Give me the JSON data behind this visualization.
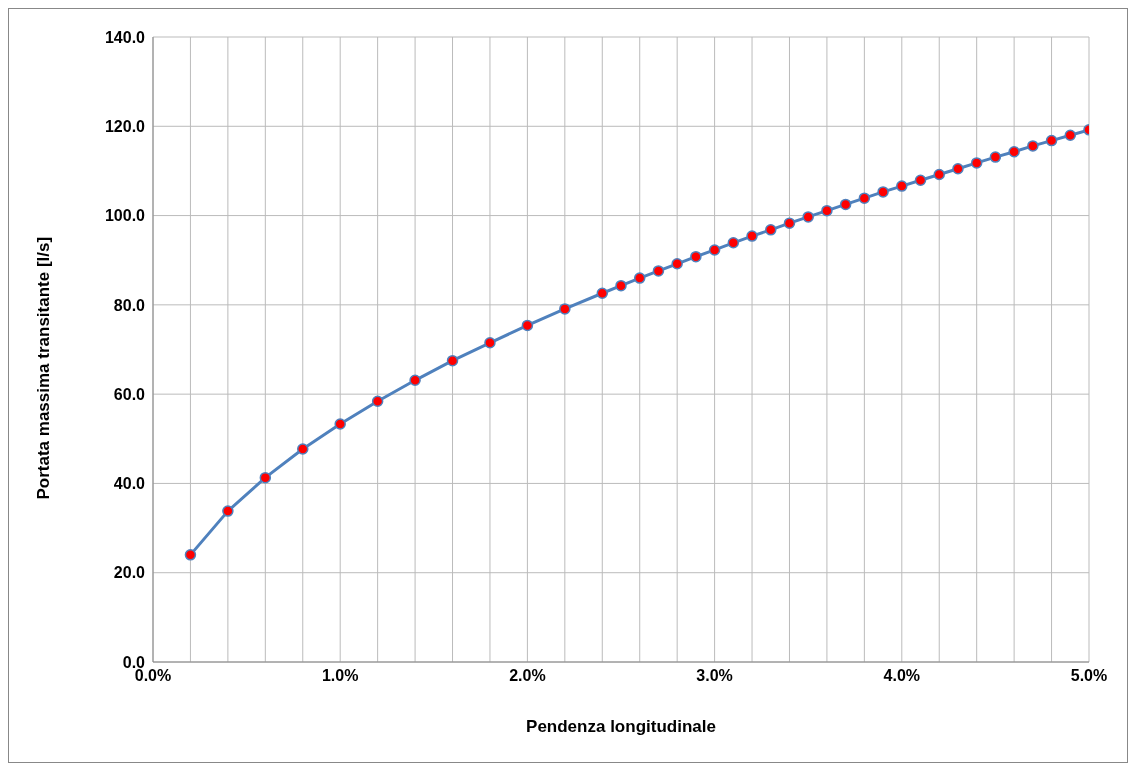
{
  "chart_data": {
    "type": "line",
    "xlabel": "Pendenza longitudinale",
    "ylabel": "Portata massima transitante [l/s]",
    "x": [
      0.2,
      0.4,
      0.6,
      0.8,
      1.0,
      1.2,
      1.4,
      1.6,
      1.8,
      2.0,
      2.2,
      2.4,
      2.5,
      2.6,
      2.7,
      2.8,
      2.9,
      3.0,
      3.1,
      3.2,
      3.3,
      3.4,
      3.5,
      3.6,
      3.7,
      3.8,
      3.9,
      4.0,
      4.1,
      4.2,
      4.3,
      4.4,
      4.5,
      4.6,
      4.7,
      4.8,
      4.9,
      5.0
    ],
    "series": [
      {
        "color": "#4f81bd",
        "colors": [
          "#ff0000",
          "#ff0000",
          "#ff0000",
          "#ff0000",
          "#ff0000",
          "#ff0000",
          "#ff0000",
          "#ff0000",
          "#ff0000",
          "#ff0000",
          "#ff0000",
          "#ff0000",
          "#ff0000",
          "#ff0000",
          "#ff0000",
          "#ff0000",
          "#ff0000",
          "#ff0000",
          "#ff0000",
          "#ff0000",
          "#ff0000",
          "#ff0000",
          "#ff0000",
          "#ff0000",
          "#ff0000",
          "#ff0000",
          "#ff0000",
          "#ff0000",
          "#ff0000",
          "#ff0000",
          "#ff0000",
          "#ff0000",
          "#ff0000",
          "#ff0000",
          "#ff0000",
          "#ff0000",
          "#ff0000",
          "#ff0000"
        ],
        "values": [
          24.0,
          33.8,
          41.3,
          47.7,
          53.3,
          58.4,
          63.1,
          67.5,
          71.5,
          75.4,
          79.1,
          82.6,
          84.3,
          86.0,
          87.6,
          89.2,
          90.8,
          92.3,
          93.9,
          95.4,
          96.8,
          98.3,
          99.7,
          101.1,
          102.5,
          103.9,
          105.3,
          106.6,
          107.9,
          109.2,
          110.5,
          111.8,
          113.1,
          114.3,
          115.6,
          116.8,
          118.0,
          119.2
        ]
      }
    ],
    "xlim": [
      0,
      5
    ],
    "xticks": [
      {
        "value": 0,
        "label": "0.0%"
      },
      {
        "value": 0.2,
        "label": null
      },
      {
        "value": 0.4,
        "label": null
      },
      {
        "value": 0.6,
        "label": null
      },
      {
        "value": 0.8,
        "label": null
      },
      {
        "value": 1,
        "label": "1.0%"
      },
      {
        "value": 1.2,
        "label": null
      },
      {
        "value": 1.4,
        "label": null
      },
      {
        "value": 1.6,
        "label": null
      },
      {
        "value": 1.8,
        "label": null
      },
      {
        "value": 2,
        "label": "2.0%"
      },
      {
        "value": 2.2,
        "label": null
      },
      {
        "value": 2.4,
        "label": null
      },
      {
        "value": 2.6,
        "label": null
      },
      {
        "value": 2.8,
        "label": null
      },
      {
        "value": 3,
        "label": "3.0%"
      },
      {
        "value": 3.2,
        "label": null
      },
      {
        "value": 3.4,
        "label": null
      },
      {
        "value": 3.6,
        "label": null
      },
      {
        "value": 3.8,
        "label": null
      },
      {
        "value": 4,
        "label": "4.0%"
      },
      {
        "value": 4.2,
        "label": null
      },
      {
        "value": 4.4,
        "label": null
      },
      {
        "value": 4.6,
        "label": null
      },
      {
        "value": 4.8,
        "label": null
      },
      {
        "value": 5,
        "label": "5.0%"
      }
    ],
    "ylim": [
      0,
      140
    ],
    "yticks": [
      {
        "value": 0,
        "label": "0.0"
      },
      {
        "value": 20,
        "label": "20.0"
      },
      {
        "value": 40,
        "label": "40.0"
      },
      {
        "value": 60,
        "label": "60.0"
      },
      {
        "value": 80,
        "label": "80.0"
      },
      {
        "value": 100,
        "label": "100.0"
      },
      {
        "value": 120,
        "label": "120.0"
      },
      {
        "value": 140,
        "label": "140.0"
      }
    ],
    "grid": true,
    "marker": "circle",
    "line_style": "solid"
  }
}
